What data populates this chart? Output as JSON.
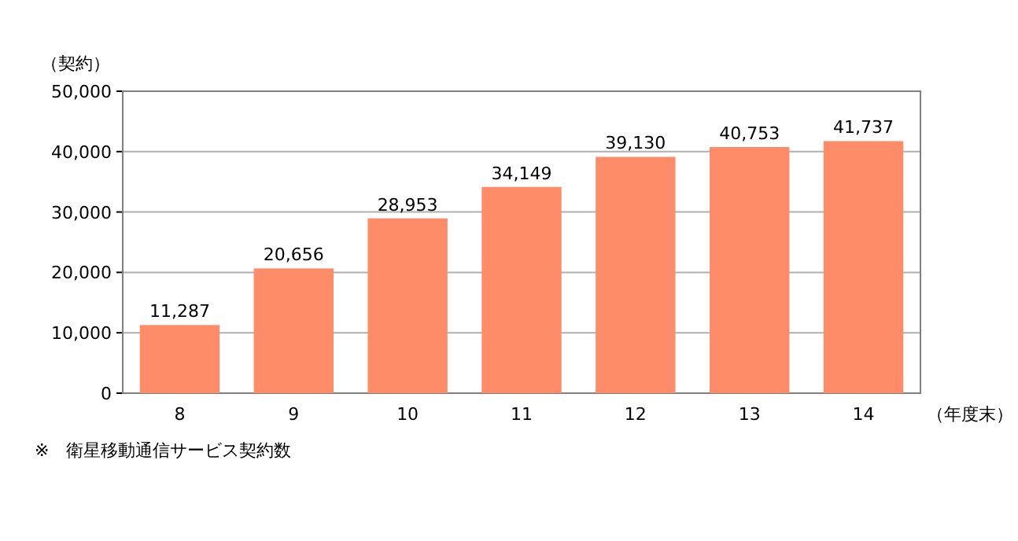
{
  "chart_data": {
    "type": "bar",
    "categories": [
      "8",
      "9",
      "10",
      "11",
      "12",
      "13",
      "14"
    ],
    "values": [
      11287,
      20656,
      28953,
      34149,
      39130,
      40753,
      41737
    ],
    "value_labels": [
      "11,287",
      "20,656",
      "28,953",
      "34,149",
      "39,130",
      "40,753",
      "41,737"
    ],
    "color": "#ff8c69",
    "ylim": [
      0,
      50000
    ],
    "yticks": [
      0,
      {
        "value": 10000,
        "label": "10,000"
      },
      {
        "value": 20000,
        "label": "20,000"
      },
      {
        "value": 30000,
        "label": "30,000"
      },
      {
        "value": 40000,
        "label": "40,000"
      },
      {
        "value": 50000,
        "label": "50,000"
      }
    ],
    "grid": "y",
    "ylabel": "（契約）",
    "xlabel": "（年度末）",
    "annotations": [
      "※　衛星移動通信サービス契約数"
    ]
  }
}
